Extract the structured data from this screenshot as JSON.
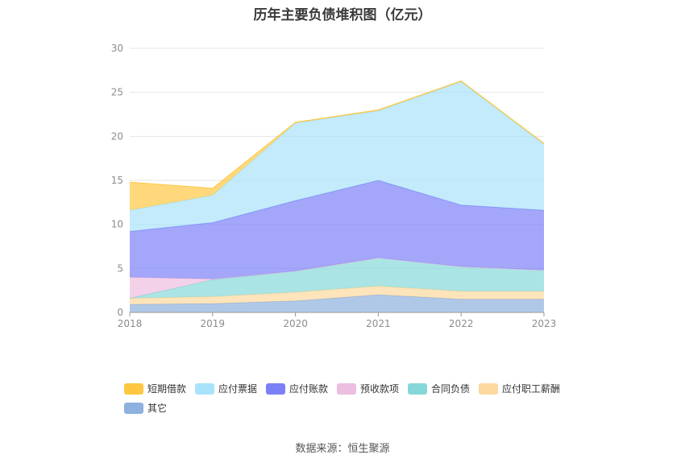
{
  "chart_data": {
    "type": "area",
    "stacked": true,
    "title": "历年主要负债堆积图（亿元）",
    "categories": [
      "2018",
      "2019",
      "2020",
      "2021",
      "2022",
      "2023"
    ],
    "ylim": [
      0,
      30
    ],
    "yticks": [
      0,
      5,
      10,
      15,
      20,
      25,
      30
    ],
    "grid": true,
    "legend_position": "bottom",
    "series": [
      {
        "name": "其它",
        "color": "#8eb1de",
        "values": [
          0.9,
          1.0,
          1.3,
          2.0,
          1.5,
          1.5
        ]
      },
      {
        "name": "应付职工薪酬",
        "color": "#fcd89e",
        "values": [
          0.7,
          0.8,
          1.0,
          1.0,
          0.9,
          0.9
        ]
      },
      {
        "name": "合同负债",
        "color": "#86d8d8",
        "values": [
          0.0,
          1.9,
          2.4,
          3.2,
          2.8,
          2.4
        ]
      },
      {
        "name": "预收款项",
        "color": "#ecbedf",
        "values": [
          2.4,
          0.1,
          0.0,
          0.0,
          0.0,
          0.0
        ]
      },
      {
        "name": "应付账款",
        "color": "#7c80f6",
        "values": [
          5.2,
          6.4,
          8.0,
          8.8,
          7.0,
          6.8
        ]
      },
      {
        "name": "应付票据",
        "color": "#a9e3fb",
        "values": [
          2.4,
          3.1,
          8.8,
          7.9,
          14.0,
          7.5
        ]
      },
      {
        "name": "短期借款",
        "color": "#fec741",
        "values": [
          3.2,
          0.8,
          0.1,
          0.1,
          0.1,
          0.1
        ]
      }
    ],
    "legend_order": [
      "短期借款",
      "应付票据",
      "应付账款",
      "预收款项",
      "合同负债",
      "应付职工薪酬",
      "其它"
    ],
    "source": "数据来源：恒生聚源"
  }
}
